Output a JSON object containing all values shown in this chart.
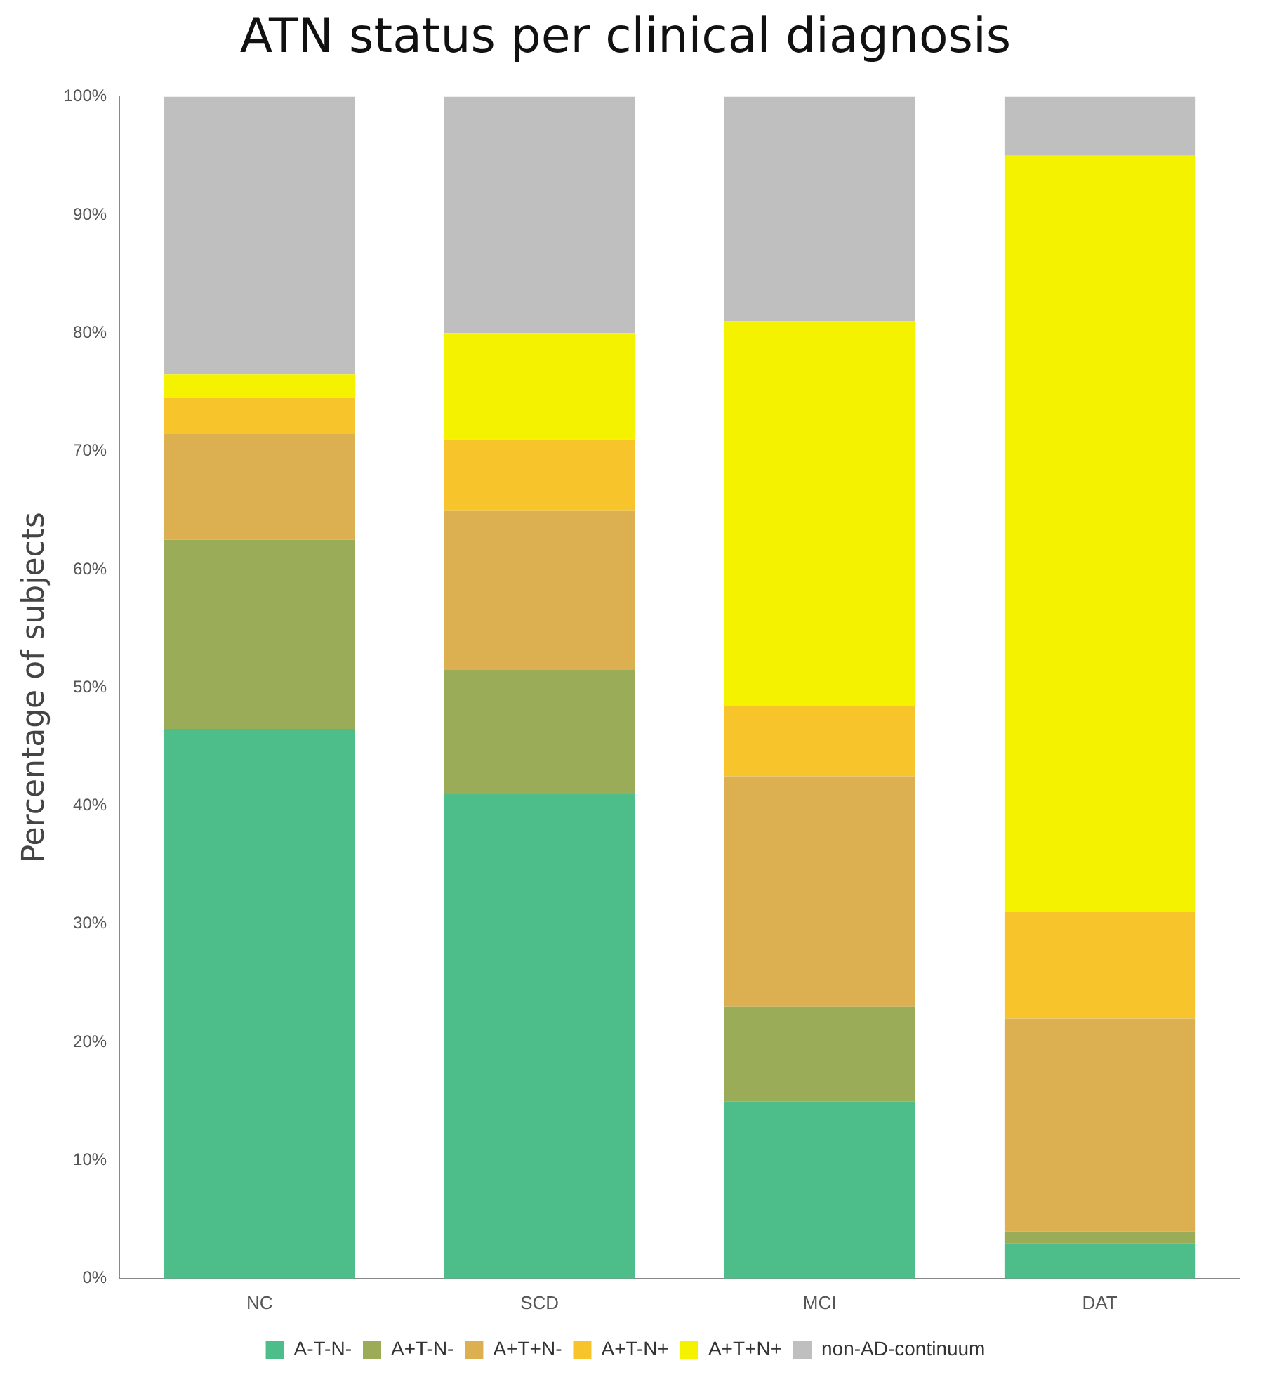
{
  "chart_data": {
    "type": "bar",
    "stacked": true,
    "title": "ATN status per clinical diagnosis",
    "ylabel": "Percentage of subjects",
    "categories": [
      "NC",
      "SCD",
      "MCI",
      "DAT"
    ],
    "series": [
      {
        "name": "A-T-N-",
        "color": "#4dbd8a",
        "values": [
          46.5,
          41,
          15,
          3
        ]
      },
      {
        "name": "A+T-N-",
        "color": "#9aac58",
        "values": [
          16,
          10.5,
          8,
          1
        ]
      },
      {
        "name": "A+T+N-",
        "color": "#dcb050",
        "values": [
          9,
          13.5,
          19.5,
          18
        ]
      },
      {
        "name": "A+T-N+",
        "color": "#f8c42c",
        "values": [
          3,
          6,
          6,
          9
        ]
      },
      {
        "name": "A+T+N+",
        "color": "#f5f200",
        "values": [
          2,
          9,
          32.5,
          64
        ]
      },
      {
        "name": "non-AD-continuum",
        "color": "#bfbfbf",
        "values": [
          23.5,
          20,
          19,
          5
        ]
      }
    ],
    "ylim": [
      0,
      100
    ],
    "yticks": [
      {
        "value": 0,
        "label": "0%"
      },
      {
        "value": 10,
        "label": "10%"
      },
      {
        "value": 20,
        "label": "20%"
      },
      {
        "value": 30,
        "label": "30%"
      },
      {
        "value": 40,
        "label": "40%"
      },
      {
        "value": 50,
        "label": "50%"
      },
      {
        "value": 60,
        "label": "60%"
      },
      {
        "value": 70,
        "label": "70%"
      },
      {
        "value": 80,
        "label": "80%"
      },
      {
        "value": 90,
        "label": "90%"
      },
      {
        "value": 100,
        "label": "100%"
      }
    ],
    "grid": false,
    "legend": "bottom"
  }
}
